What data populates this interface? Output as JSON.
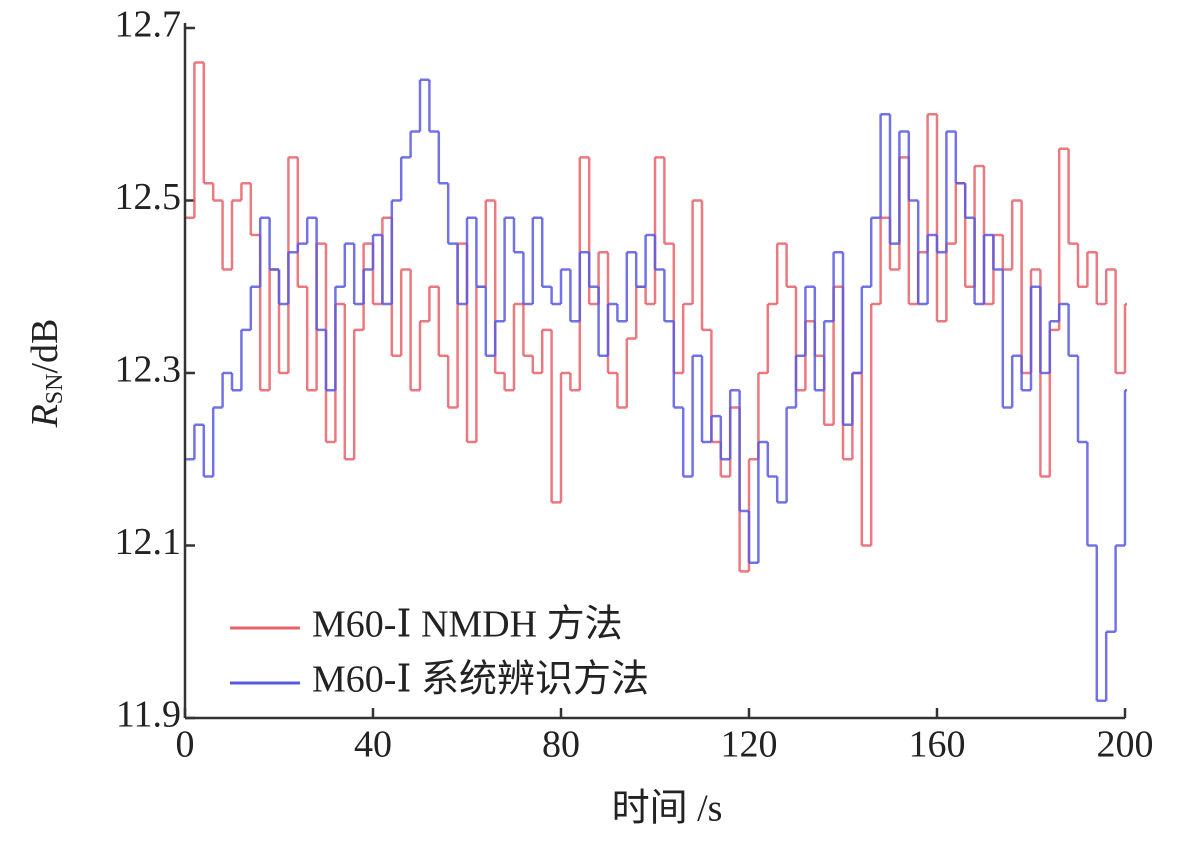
{
  "chart_data": {
    "type": "step",
    "xlabel": "时间 /s",
    "ylabel": {
      "symbol": "R",
      "subscript": "SN",
      "unit": "/dB"
    },
    "xlim": [
      0,
      200
    ],
    "ylim": [
      11.9,
      12.7
    ],
    "xticks": [
      0,
      40,
      80,
      120,
      160,
      200
    ],
    "yticks": [
      11.9,
      12.1,
      12.3,
      12.5,
      12.7
    ],
    "legend": "lower left",
    "x": [
      0,
      2,
      4,
      6,
      8,
      10,
      12,
      14,
      16,
      18,
      20,
      22,
      24,
      26,
      28,
      30,
      32,
      34,
      36,
      38,
      40,
      42,
      44,
      46,
      48,
      50,
      52,
      54,
      56,
      58,
      60,
      62,
      64,
      66,
      68,
      70,
      72,
      74,
      76,
      78,
      80,
      82,
      84,
      86,
      88,
      90,
      92,
      94,
      96,
      98,
      100,
      102,
      104,
      106,
      108,
      110,
      112,
      114,
      116,
      118,
      120,
      122,
      124,
      126,
      128,
      130,
      132,
      134,
      136,
      138,
      140,
      142,
      144,
      146,
      148,
      150,
      152,
      154,
      156,
      158,
      160,
      162,
      164,
      166,
      168,
      170,
      172,
      174,
      176,
      178,
      180,
      182,
      184,
      186,
      188,
      190,
      192,
      194,
      196,
      198,
      200
    ],
    "series": [
      {
        "name": "M60-Ⅰ NMDH 方法",
        "color": "#e8626a",
        "values": [
          12.48,
          12.66,
          12.52,
          12.5,
          12.42,
          12.5,
          12.52,
          12.46,
          12.28,
          12.42,
          12.3,
          12.55,
          12.4,
          12.28,
          12.45,
          12.22,
          12.38,
          12.2,
          12.35,
          12.45,
          12.38,
          12.48,
          12.32,
          12.42,
          12.28,
          12.36,
          12.4,
          12.32,
          12.26,
          12.45,
          12.22,
          12.4,
          12.5,
          12.3,
          12.28,
          12.38,
          12.32,
          12.3,
          12.35,
          12.15,
          12.3,
          12.28,
          12.55,
          12.38,
          12.44,
          12.3,
          12.26,
          12.34,
          12.4,
          12.38,
          12.55,
          12.45,
          12.3,
          12.38,
          12.5,
          12.35,
          12.22,
          12.18,
          12.26,
          12.07,
          12.2,
          12.3,
          12.38,
          12.45,
          12.4,
          12.28,
          12.36,
          12.32,
          12.24,
          12.4,
          12.2,
          12.3,
          12.1,
          12.38,
          12.48,
          12.42,
          12.55,
          12.38,
          12.44,
          12.6,
          12.36,
          12.45,
          12.52,
          12.4,
          12.54,
          12.38,
          12.46,
          12.42,
          12.5,
          12.3,
          12.42,
          12.18,
          12.35,
          12.56,
          12.45,
          12.4,
          12.44,
          12.38,
          12.42,
          12.3,
          12.38
        ]
      },
      {
        "name": "M60-Ⅰ 系统辨识方法",
        "color": "#5a5ae0",
        "values": [
          12.2,
          12.24,
          12.18,
          12.26,
          12.3,
          12.28,
          12.35,
          12.4,
          12.48,
          12.42,
          12.38,
          12.44,
          12.45,
          12.48,
          12.35,
          12.28,
          12.4,
          12.45,
          12.38,
          12.42,
          12.46,
          12.38,
          12.5,
          12.55,
          12.58,
          12.64,
          12.58,
          12.52,
          12.45,
          12.38,
          12.48,
          12.4,
          12.32,
          12.36,
          12.48,
          12.44,
          12.38,
          12.48,
          12.4,
          12.38,
          12.42,
          12.36,
          12.44,
          12.4,
          12.32,
          12.38,
          12.36,
          12.44,
          12.4,
          12.46,
          12.42,
          12.36,
          12.26,
          12.18,
          12.32,
          12.22,
          12.25,
          12.2,
          12.28,
          12.14,
          12.08,
          12.22,
          12.18,
          12.15,
          12.26,
          12.32,
          12.4,
          12.28,
          12.36,
          12.44,
          12.24,
          12.3,
          12.4,
          12.48,
          12.6,
          12.45,
          12.58,
          12.5,
          12.38,
          12.46,
          12.44,
          12.58,
          12.52,
          12.48,
          12.38,
          12.46,
          12.42,
          12.26,
          12.32,
          12.28,
          12.4,
          12.3,
          12.36,
          12.38,
          12.32,
          12.22,
          12.1,
          11.92,
          12.0,
          12.1,
          12.28
        ]
      }
    ]
  }
}
